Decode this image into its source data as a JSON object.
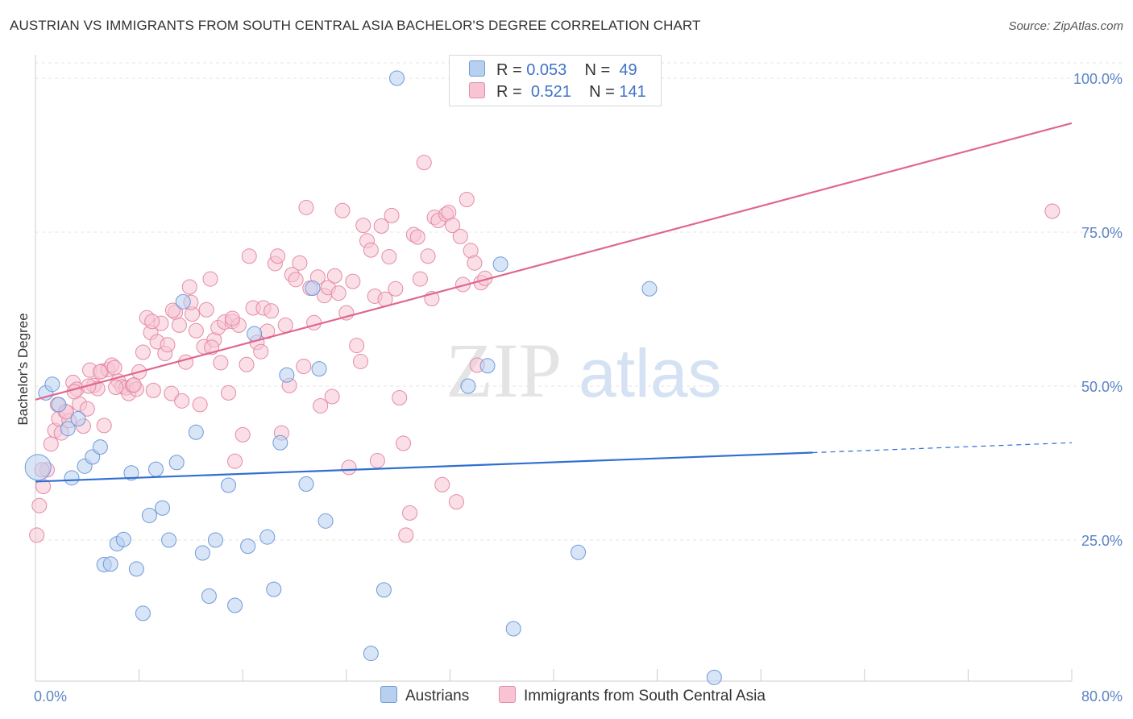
{
  "title": "AUSTRIAN VS IMMIGRANTS FROM SOUTH CENTRAL ASIA BACHELOR'S DEGREE CORRELATION CHART",
  "source": "Source: ZipAtlas.com",
  "watermark": {
    "zip": "ZIP",
    "atlas": "atlas"
  },
  "legend": {
    "r_label": "R =",
    "n_label": "N =",
    "series": [
      {
        "name": "Austrians",
        "r": "0.053",
        "n": "49",
        "fill": "#b8d0f0",
        "stroke": "#6f9ad8"
      },
      {
        "name": "Immigrants from South Central Asia",
        "r": "0.521",
        "n": "141",
        "fill": "#f8c4d4",
        "stroke": "#e48aa8"
      }
    ]
  },
  "chart_data": {
    "type": "scatter",
    "title": "AUSTRIAN VS IMMIGRANTS FROM SOUTH CENTRAL ASIA BACHELOR'S DEGREE CORRELATION CHART",
    "xlabel": "",
    "ylabel": "Bachelor's Degree",
    "xlim": [
      0,
      80
    ],
    "ylim": [
      0,
      105
    ],
    "x_tick_labels": [
      "0.0%",
      "80.0%"
    ],
    "y_ticks": [
      25,
      50,
      75,
      100
    ],
    "y_tick_labels": [
      "25.0%",
      "50.0%",
      "75.0%",
      "100.0%"
    ],
    "grid": true,
    "colors": {
      "austrians": "#6f9ad8",
      "immigrants": "#e48aa8",
      "austrians_line": "#2f6fd1",
      "immigrants_line": "#e0668f",
      "tick": "#5b84c4"
    },
    "series": [
      {
        "name": "Austrians",
        "trend": {
          "x0": 0,
          "y0": 34.5,
          "x1": 60,
          "y1": 39.2,
          "dash_to_x": 80,
          "dash_to_y": 40.8
        },
        "points": [
          [
            0.2,
            36.8
          ],
          [
            0.8,
            48.9
          ],
          [
            1.3,
            50.3
          ],
          [
            1.8,
            47.0
          ],
          [
            2.5,
            43.1
          ],
          [
            2.8,
            35.1
          ],
          [
            3.3,
            44.7
          ],
          [
            3.8,
            37.0
          ],
          [
            4.4,
            38.5
          ],
          [
            5.0,
            40.1
          ],
          [
            5.3,
            21.0
          ],
          [
            5.8,
            21.1
          ],
          [
            6.3,
            24.4
          ],
          [
            6.8,
            25.1
          ],
          [
            7.4,
            35.9
          ],
          [
            7.8,
            20.3
          ],
          [
            8.3,
            13.1
          ],
          [
            8.8,
            29.0
          ],
          [
            9.3,
            36.5
          ],
          [
            9.8,
            30.2
          ],
          [
            10.3,
            25.0
          ],
          [
            10.9,
            37.6
          ],
          [
            11.4,
            63.7
          ],
          [
            12.4,
            42.5
          ],
          [
            12.9,
            22.9
          ],
          [
            13.4,
            15.9
          ],
          [
            13.9,
            25.0
          ],
          [
            14.9,
            33.9
          ],
          [
            15.4,
            14.4
          ],
          [
            16.4,
            24.0
          ],
          [
            16.9,
            58.5
          ],
          [
            17.9,
            25.5
          ],
          [
            18.4,
            17.0
          ],
          [
            18.9,
            40.8
          ],
          [
            19.4,
            51.8
          ],
          [
            20.9,
            34.1
          ],
          [
            21.4,
            65.9
          ],
          [
            21.9,
            52.8
          ],
          [
            22.4,
            28.1
          ],
          [
            25.9,
            6.6
          ],
          [
            26.9,
            16.9
          ],
          [
            27.9,
            100.0
          ],
          [
            33.4,
            50.0
          ],
          [
            34.9,
            53.3
          ],
          [
            35.9,
            69.8
          ],
          [
            36.9,
            10.6
          ],
          [
            41.9,
            23.0
          ],
          [
            47.4,
            65.8
          ],
          [
            52.4,
            2.7
          ]
        ]
      },
      {
        "name": "Immigrants from South Central Asia",
        "trend": {
          "x0": 0,
          "y0": 47.8,
          "x1": 80,
          "y1": 92.7
        },
        "points": [
          [
            0.1,
            25.8
          ],
          [
            0.3,
            30.6
          ],
          [
            0.6,
            33.7
          ],
          [
            0.9,
            36.4
          ],
          [
            1.2,
            40.6
          ],
          [
            1.5,
            42.8
          ],
          [
            1.8,
            44.7
          ],
          [
            2.0,
            42.4
          ],
          [
            2.3,
            45.9
          ],
          [
            2.6,
            44.4
          ],
          [
            2.9,
            50.6
          ],
          [
            3.2,
            49.5
          ],
          [
            3.4,
            47.1
          ],
          [
            3.7,
            43.5
          ],
          [
            4.0,
            46.3
          ],
          [
            4.2,
            52.6
          ],
          [
            4.5,
            50.1
          ],
          [
            4.8,
            49.6
          ],
          [
            5.1,
            52.4
          ],
          [
            5.3,
            43.6
          ],
          [
            5.6,
            52.7
          ],
          [
            5.9,
            53.4
          ],
          [
            6.1,
            53.0
          ],
          [
            6.4,
            50.8
          ],
          [
            6.7,
            49.9
          ],
          [
            7.0,
            49.7
          ],
          [
            7.2,
            48.8
          ],
          [
            7.5,
            50.1
          ],
          [
            7.8,
            49.5
          ],
          [
            8.0,
            52.3
          ],
          [
            8.3,
            55.5
          ],
          [
            8.6,
            61.1
          ],
          [
            8.9,
            58.7
          ],
          [
            9.1,
            49.3
          ],
          [
            9.4,
            57.2
          ],
          [
            9.7,
            60.2
          ],
          [
            10.0,
            55.3
          ],
          [
            10.2,
            56.7
          ],
          [
            10.5,
            48.8
          ],
          [
            10.8,
            62.0
          ],
          [
            11.1,
            59.9
          ],
          [
            11.3,
            47.6
          ],
          [
            11.6,
            53.9
          ],
          [
            11.9,
            66.1
          ],
          [
            12.1,
            61.7
          ],
          [
            12.4,
            59.0
          ],
          [
            12.7,
            47.0
          ],
          [
            13.0,
            56.4
          ],
          [
            13.2,
            62.4
          ],
          [
            13.5,
            67.4
          ],
          [
            13.8,
            57.5
          ],
          [
            14.1,
            59.5
          ],
          [
            14.3,
            53.8
          ],
          [
            14.6,
            60.4
          ],
          [
            14.9,
            48.9
          ],
          [
            15.2,
            60.5
          ],
          [
            15.4,
            37.8
          ],
          [
            15.7,
            59.9
          ],
          [
            16.0,
            42.1
          ],
          [
            16.3,
            53.5
          ],
          [
            16.5,
            71.1
          ],
          [
            16.8,
            62.7
          ],
          [
            17.1,
            57.1
          ],
          [
            17.4,
            55.6
          ],
          [
            17.6,
            62.7
          ],
          [
            17.9,
            58.9
          ],
          [
            18.2,
            62.2
          ],
          [
            18.5,
            69.9
          ],
          [
            18.7,
            71.1
          ],
          [
            19.0,
            42.4
          ],
          [
            19.3,
            59.9
          ],
          [
            19.6,
            50.1
          ],
          [
            19.8,
            68.1
          ],
          [
            20.1,
            67.3
          ],
          [
            20.4,
            70.0
          ],
          [
            20.7,
            53.2
          ],
          [
            20.9,
            79.0
          ],
          [
            21.2,
            65.9
          ],
          [
            21.5,
            60.3
          ],
          [
            21.8,
            67.7
          ],
          [
            22.0,
            46.8
          ],
          [
            22.3,
            64.7
          ],
          [
            22.6,
            66.0
          ],
          [
            22.9,
            48.3
          ],
          [
            23.1,
            67.9
          ],
          [
            23.4,
            65.1
          ],
          [
            23.7,
            78.5
          ],
          [
            24.0,
            61.9
          ],
          [
            24.2,
            36.8
          ],
          [
            24.5,
            67.0
          ],
          [
            24.8,
            56.6
          ],
          [
            25.1,
            54.0
          ],
          [
            25.3,
            76.1
          ],
          [
            25.6,
            73.6
          ],
          [
            25.9,
            72.1
          ],
          [
            26.2,
            64.6
          ],
          [
            26.4,
            37.9
          ],
          [
            26.7,
            76.0
          ],
          [
            27.0,
            64.1
          ],
          [
            27.3,
            71.0
          ],
          [
            27.5,
            77.7
          ],
          [
            27.8,
            65.8
          ],
          [
            28.1,
            48.1
          ],
          [
            28.4,
            40.7
          ],
          [
            28.6,
            25.8
          ],
          [
            28.9,
            29.4
          ],
          [
            29.2,
            74.6
          ],
          [
            29.5,
            74.2
          ],
          [
            29.7,
            67.4
          ],
          [
            30.0,
            86.3
          ],
          [
            30.3,
            71.1
          ],
          [
            30.6,
            64.2
          ],
          [
            30.8,
            77.4
          ],
          [
            31.1,
            76.9
          ],
          [
            31.4,
            34.0
          ],
          [
            31.7,
            77.9
          ],
          [
            31.9,
            78.2
          ],
          [
            32.2,
            76.1
          ],
          [
            32.5,
            31.2
          ],
          [
            32.8,
            74.3
          ],
          [
            33.0,
            66.5
          ],
          [
            33.3,
            80.3
          ],
          [
            33.6,
            72.0
          ],
          [
            33.9,
            70.0
          ],
          [
            34.1,
            53.4
          ],
          [
            34.4,
            66.8
          ],
          [
            34.7,
            67.5
          ],
          [
            0.5,
            36.4
          ],
          [
            1.7,
            47.0
          ],
          [
            2.4,
            45.8
          ],
          [
            3.0,
            49.1
          ],
          [
            4.1,
            50.0
          ],
          [
            5.0,
            52.3
          ],
          [
            6.2,
            49.8
          ],
          [
            7.6,
            50.2
          ],
          [
            9.0,
            60.5
          ],
          [
            10.6,
            62.3
          ],
          [
            12.0,
            63.6
          ],
          [
            13.6,
            56.3
          ],
          [
            15.2,
            61.0
          ],
          [
            78.5,
            78.4
          ]
        ]
      }
    ]
  }
}
